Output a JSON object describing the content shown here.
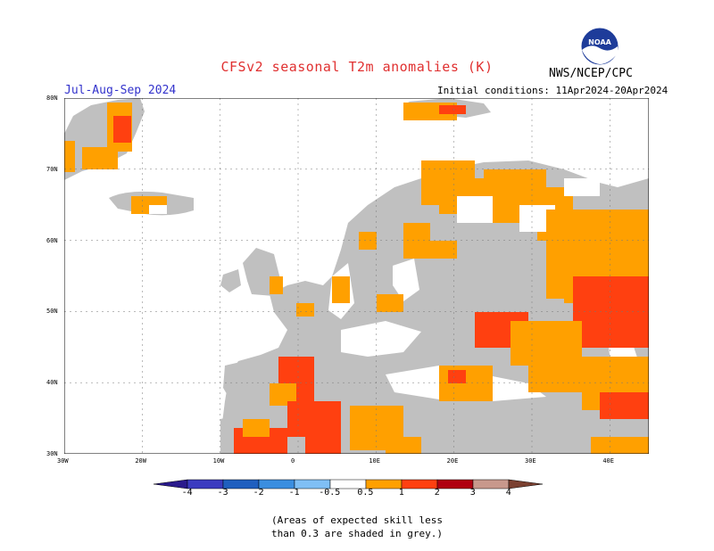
{
  "header": {
    "title": "CFSv2 seasonal T2m anomalies (K)",
    "season": "Jul-Aug-Sep 2024",
    "initial_conditions": "Initial conditions: 11Apr2024-20Apr2024",
    "agency": "NWS/NCEP/CPC",
    "logo_text": "NOAA"
  },
  "map": {
    "lat_labels": [
      "80N",
      "70N",
      "60N",
      "50N",
      "40N",
      "30N"
    ],
    "lon_labels": [
      "30W",
      "20W",
      "10W",
      "0",
      "10E",
      "20E",
      "30E",
      "40E"
    ],
    "lat_range": [
      30,
      80
    ],
    "lon_range": [
      -30,
      45
    ],
    "grid": true,
    "skill_mask_color": "#c0c0c0"
  },
  "colorbar": {
    "labels": [
      "-4",
      "-3",
      "-2",
      "-1",
      "-0.5",
      "0.5",
      "1",
      "2",
      "3",
      "4"
    ],
    "colors": [
      "#2a1a8c",
      "#3b3bc0",
      "#1f5fbf",
      "#3a8ee0",
      "#7fbff5",
      "#ffffff",
      "#ffa000",
      "#ff4010",
      "#b00010",
      "#c8988c",
      "#7a4030"
    ]
  },
  "footnote": "(Areas of expected skill less\nthan 0.3 are shaded in grey.)"
}
